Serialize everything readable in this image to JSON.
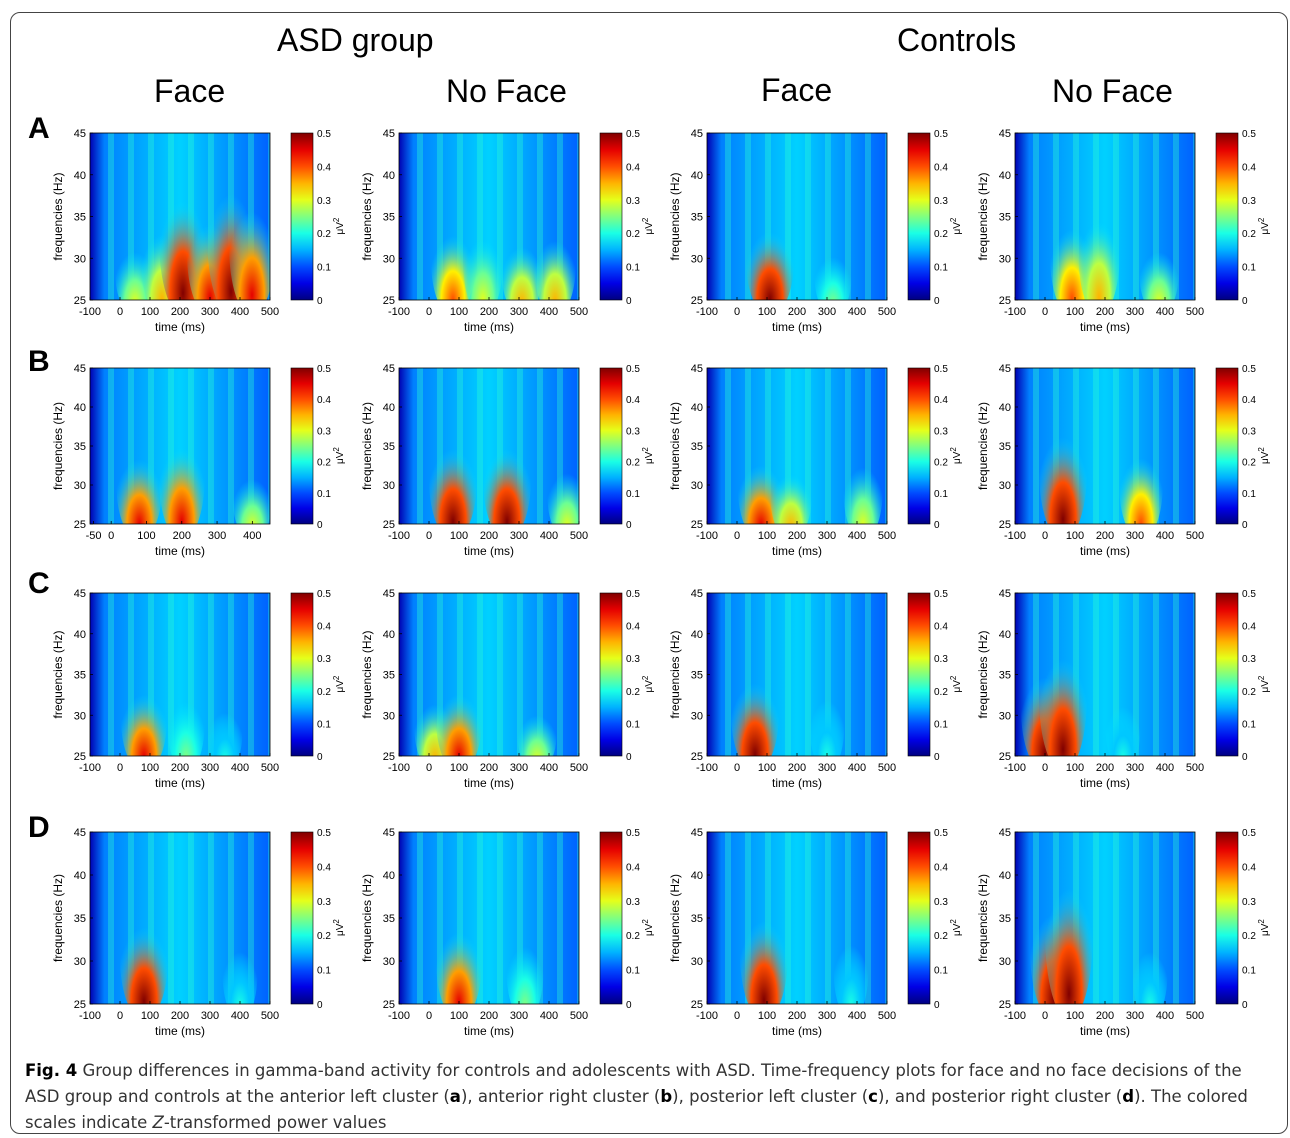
{
  "groups": [
    "ASD group",
    "Controls"
  ],
  "conditions": [
    "Face",
    "No Face",
    "Face",
    "No Face"
  ],
  "row_labels": [
    "A",
    "B",
    "C",
    "D"
  ],
  "ylabel": "frequencies (Hz)",
  "xlabel": "time (ms)",
  "cbar_label": "μV",
  "cbar_exp": "2",
  "yticks": [
    "45",
    "40",
    "35",
    "30",
    "25"
  ],
  "cbar_ticks": [
    "0.5",
    "0.4",
    "0.3",
    "0.2",
    "0.1",
    "0"
  ],
  "xticks_default": [
    "-100",
    "0",
    "100",
    "200",
    "300",
    "400",
    "500"
  ],
  "xticks_B_face": [
    "-50",
    "0",
    "100",
    "200",
    "300",
    "400"
  ],
  "colormap": "jet",
  "chart_data": {
    "type": "heatmap",
    "x_unit": "ms",
    "y_unit": "Hz",
    "yrange": [
      25,
      45
    ],
    "color_range": [
      0,
      0.5
    ],
    "panels": [
      {
        "row": "A",
        "group": "ASD group",
        "condition": "Face",
        "xrange": [
          -100,
          500
        ],
        "peaks": [
          [
            50,
            28,
            0.3
          ],
          [
            140,
            30,
            0.35
          ],
          [
            210,
            33,
            0.5
          ],
          [
            300,
            30,
            0.45
          ],
          [
            370,
            34,
            0.5
          ],
          [
            440,
            32,
            0.45
          ]
        ]
      },
      {
        "row": "A",
        "group": "ASD group",
        "condition": "No Face",
        "xrange": [
          -100,
          500
        ],
        "peaks": [
          [
            80,
            29,
            0.4
          ],
          [
            180,
            30,
            0.3
          ],
          [
            310,
            28,
            0.35
          ],
          [
            420,
            29,
            0.35
          ]
        ]
      },
      {
        "row": "A",
        "group": "Controls",
        "condition": "Face",
        "xrange": [
          -100,
          500
        ],
        "peaks": [
          [
            110,
            28,
            0.5
          ],
          [
            320,
            28,
            0.25
          ]
        ]
      },
      {
        "row": "A",
        "group": "Controls",
        "condition": "No Face",
        "xrange": [
          -100,
          500
        ],
        "peaks": [
          [
            90,
            30,
            0.4
          ],
          [
            180,
            32,
            0.35
          ],
          [
            380,
            28,
            0.3
          ]
        ]
      },
      {
        "row": "B",
        "group": "ASD group",
        "condition": "Face",
        "xrange": [
          -60,
          450
        ],
        "peaks": [
          [
            80,
            29,
            0.45
          ],
          [
            200,
            31,
            0.45
          ],
          [
            400,
            28,
            0.3
          ]
        ]
      },
      {
        "row": "B",
        "group": "ASD group",
        "condition": "No Face",
        "xrange": [
          -100,
          500
        ],
        "peaks": [
          [
            80,
            30,
            0.5
          ],
          [
            260,
            30,
            0.5
          ],
          [
            460,
            29,
            0.3
          ]
        ]
      },
      {
        "row": "B",
        "group": "Controls",
        "condition": "Face",
        "xrange": [
          -100,
          500
        ],
        "peaks": [
          [
            80,
            28,
            0.45
          ],
          [
            180,
            28,
            0.35
          ],
          [
            420,
            30,
            0.3
          ]
        ]
      },
      {
        "row": "B",
        "group": "Controls",
        "condition": "No Face",
        "xrange": [
          -100,
          500
        ],
        "peaks": [
          [
            60,
            32,
            0.5
          ],
          [
            320,
            30,
            0.4
          ]
        ]
      },
      {
        "row": "C",
        "group": "ASD group",
        "condition": "Face",
        "xrange": [
          -100,
          500
        ],
        "peaks": [
          [
            80,
            28,
            0.45
          ],
          [
            220,
            30,
            0.25
          ],
          [
            350,
            29,
            0.2
          ]
        ]
      },
      {
        "row": "C",
        "group": "ASD group",
        "condition": "No Face",
        "xrange": [
          -100,
          500
        ],
        "peaks": [
          [
            20,
            28,
            0.35
          ],
          [
            100,
            28,
            0.45
          ],
          [
            360,
            27,
            0.3
          ]
        ]
      },
      {
        "row": "C",
        "group": "Controls",
        "condition": "Face",
        "xrange": [
          -100,
          500
        ],
        "peaks": [
          [
            60,
            29,
            0.5
          ],
          [
            300,
            31,
            0.2
          ]
        ]
      },
      {
        "row": "C",
        "group": "Controls",
        "condition": "No Face",
        "xrange": [
          -100,
          500
        ],
        "peaks": [
          [
            0,
            30,
            0.5
          ],
          [
            60,
            33,
            0.5
          ],
          [
            260,
            30,
            0.2
          ]
        ]
      },
      {
        "row": "D",
        "group": "ASD group",
        "condition": "Face",
        "xrange": [
          -100,
          500
        ],
        "peaks": [
          [
            80,
            29,
            0.5
          ],
          [
            400,
            30,
            0.2
          ]
        ]
      },
      {
        "row": "D",
        "group": "ASD group",
        "condition": "No Face",
        "xrange": [
          -100,
          500
        ],
        "peaks": [
          [
            100,
            29,
            0.45
          ],
          [
            320,
            30,
            0.25
          ]
        ]
      },
      {
        "row": "D",
        "group": "Controls",
        "condition": "Face",
        "xrange": [
          -100,
          500
        ],
        "peaks": [
          [
            90,
            30,
            0.5
          ],
          [
            380,
            31,
            0.2
          ]
        ]
      },
      {
        "row": "D",
        "group": "Controls",
        "condition": "No Face",
        "xrange": [
          -100,
          500
        ],
        "peaks": [
          [
            30,
            31,
            0.5
          ],
          [
            80,
            35,
            0.5
          ],
          [
            350,
            30,
            0.2
          ]
        ]
      }
    ]
  },
  "caption": {
    "fig_label": "Fig. 4",
    "text1": " Group differences in gamma-band activity for controls and adolescents with ASD. Time-frequency plots for face and no face decisions of the ASD group and controls at the anterior left cluster (",
    "a": "a",
    "text2": "), anterior right cluster (",
    "b": "b",
    "text3": "), posterior left cluster (",
    "c": "c",
    "text4": "), and posterior right cluster (",
    "d": "d",
    "text5": "). The colored scales indicate ",
    "z": "Z",
    "text6": "-transformed power values"
  }
}
